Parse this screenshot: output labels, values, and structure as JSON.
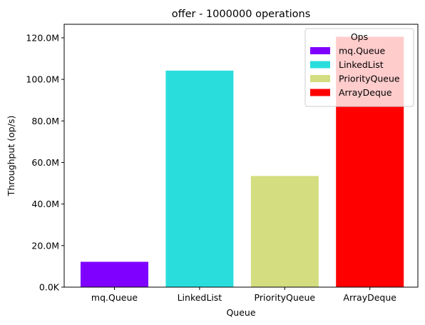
{
  "chart_data": {
    "type": "bar",
    "title": "offer - 1000000 operations",
    "xlabel": "Queue",
    "ylabel": "Throughput (op/s)",
    "categories": [
      "mq.Queue",
      "LinkedList",
      "PriorityQueue",
      "ArrayDeque"
    ],
    "values": [
      12200000,
      104200000,
      53500000,
      120500000
    ],
    "colors": [
      "#8000ff",
      "#2adddd",
      "#d4dd80",
      "#ff0000"
    ],
    "ylim": [
      0,
      126500000
    ],
    "yticks": [
      0,
      20000000,
      40000000,
      60000000,
      80000000,
      100000000,
      120000000
    ],
    "ytick_labels": [
      "0.0K",
      "20.0M",
      "40.0M",
      "60.0M",
      "80.0M",
      "100.0M",
      "120.0M"
    ],
    "grid": false,
    "legend": {
      "title": "Ops",
      "placement": "top-right",
      "entries": [
        "mq.Queue",
        "LinkedList",
        "PriorityQueue",
        "ArrayDeque"
      ]
    }
  }
}
